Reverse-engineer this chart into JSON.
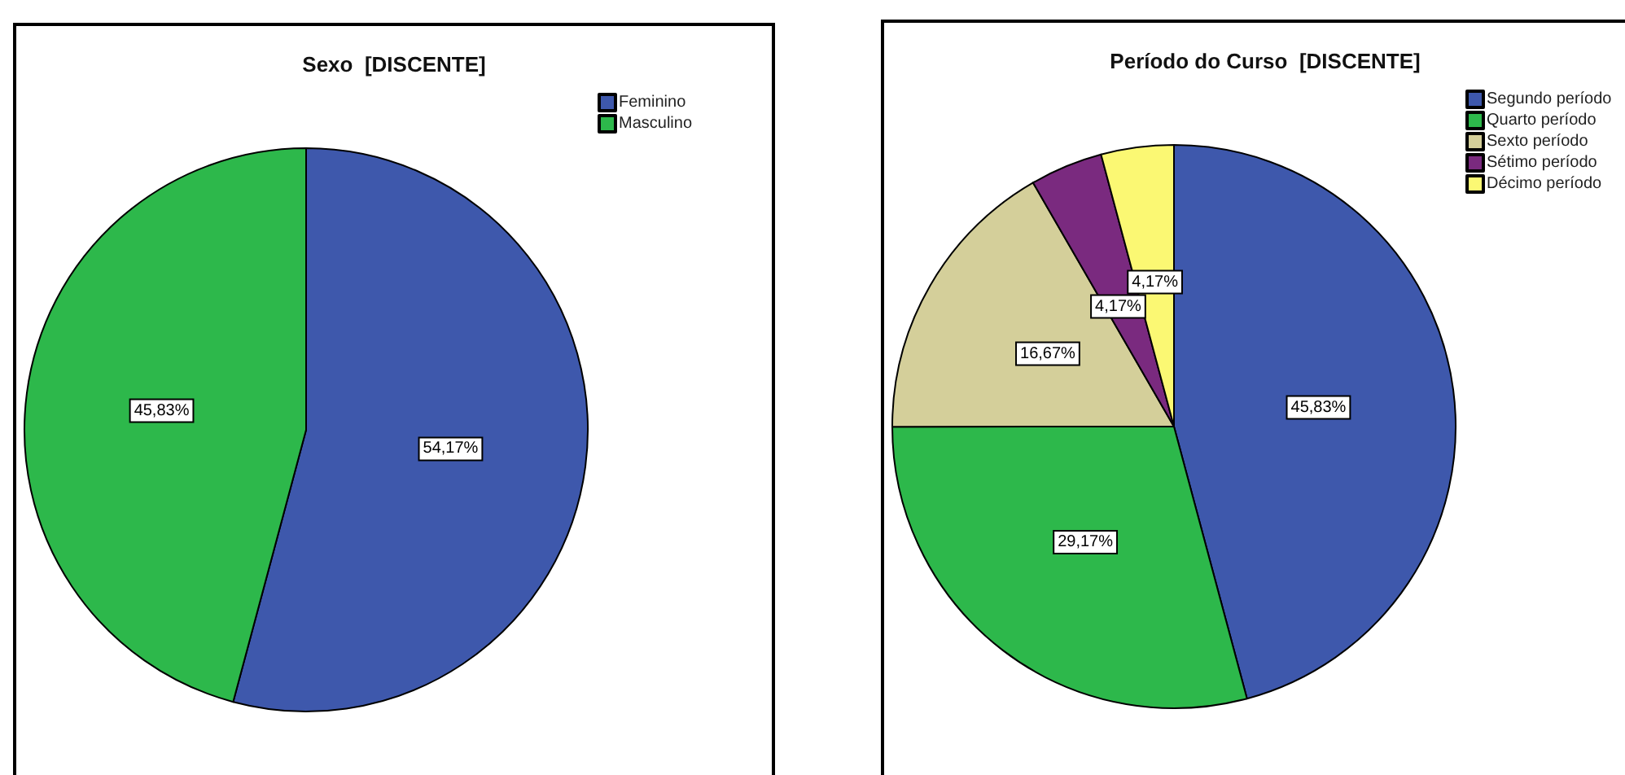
{
  "chart_data": [
    {
      "type": "pie",
      "title": "Sexo  [DISCENTE]",
      "categories": [
        "Feminino",
        "Masculino"
      ],
      "values": [
        54.17,
        45.83
      ],
      "colors": [
        "#3e58ac",
        "#2db84b"
      ],
      "value_labels": [
        "54,17%",
        "45,83%"
      ],
      "legend": "top right"
    },
    {
      "type": "pie",
      "title": "Período do Curso  [DISCENTE]",
      "categories": [
        "Segundo período",
        "Quarto período",
        "Sexto período",
        "Sétimo período",
        "Décimo período"
      ],
      "values": [
        45.83,
        29.17,
        16.67,
        4.17,
        4.17
      ],
      "colors": [
        "#3e58ac",
        "#2db84b",
        "#d4cf9a",
        "#7a2a7f",
        "#fbf873"
      ],
      "value_labels": [
        "45,83%",
        "29,17%",
        "16,67%",
        "4,17%",
        "4,17%"
      ],
      "legend": "top right"
    }
  ]
}
